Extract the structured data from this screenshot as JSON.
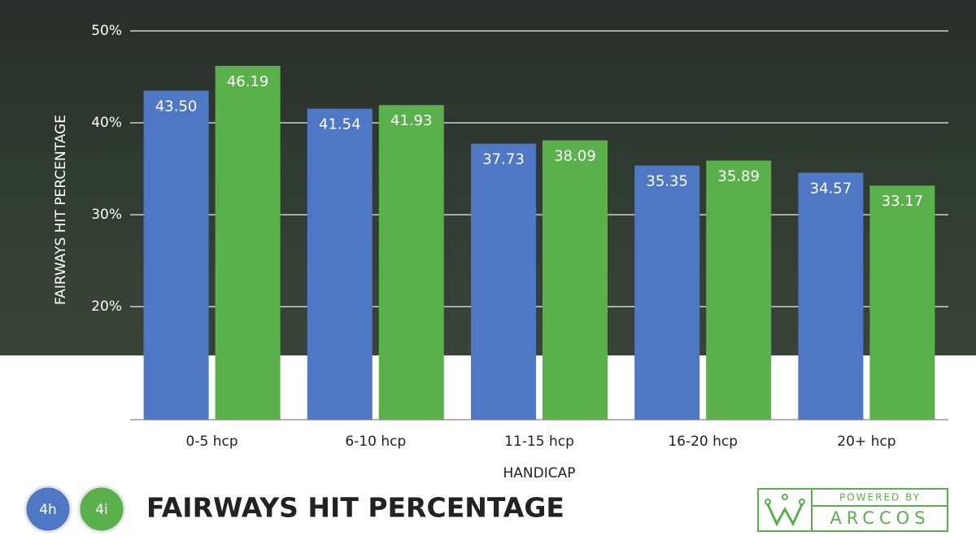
{
  "chart_data": {
    "type": "bar",
    "title": "FAIRWAYS HIT PERCENTAGE",
    "x_label": "HANDICAP",
    "y_label": "FAIRWAYS HIT PERCENTAGE",
    "categories": [
      "0-5 hcp",
      "6-10 hcp",
      "11-15 hcp",
      "16-20 hcp",
      "20+ hcp"
    ],
    "series": [
      {
        "name": "4h",
        "color": "#4f78c4",
        "values": [
          43.5,
          41.54,
          37.73,
          35.35,
          34.57
        ],
        "value_labels": [
          "43.50",
          "41.54",
          "37.73",
          "35.35",
          "34.57"
        ]
      },
      {
        "name": "4i",
        "color": "#5ab04a",
        "values": [
          46.19,
          41.93,
          38.09,
          35.89,
          33.17
        ],
        "value_labels": [
          "46.19",
          "41.93",
          "38.09",
          "35.89",
          "33.17"
        ]
      }
    ],
    "ylim": [
      7.7,
      50
    ],
    "yticks": [
      {
        "value": 20,
        "label": "20%"
      },
      {
        "value": 30,
        "label": "30%"
      },
      {
        "value": 40,
        "label": "40%"
      },
      {
        "value": 50,
        "label": "50%"
      }
    ],
    "grid": true
  },
  "logo": {
    "tagline": "POWERED BY",
    "brand": "ARCCOS"
  }
}
